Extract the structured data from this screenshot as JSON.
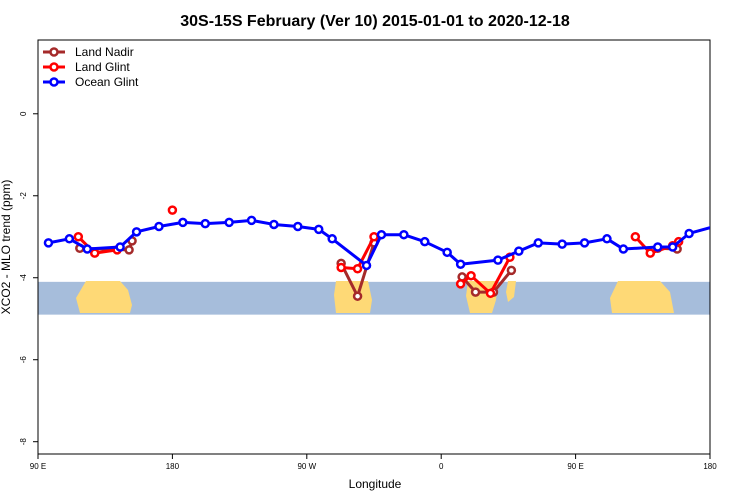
{
  "chart_data": {
    "type": "line",
    "title": "30S-15S February (Ver 10)   2015-01-01 to 2020-12-18",
    "xlabel": "Longitude",
    "ylabel": "XCO2 - MLO trend (ppm)",
    "xlim": [
      90,
      540
    ],
    "ylim": [
      -8.3,
      1.8
    ],
    "x_ticks": [
      {
        "value": 90,
        "label": "90 E"
      },
      {
        "value": 180,
        "label": "180"
      },
      {
        "value": 270,
        "label": "90 W"
      },
      {
        "value": 360,
        "label": "0"
      },
      {
        "value": 450,
        "label": "90 E"
      },
      {
        "value": 540,
        "label": "180"
      }
    ],
    "y_ticks": [
      0,
      -2,
      -4,
      -6,
      -8
    ],
    "legend_position": "top-left",
    "background_map": {
      "lat_band": [
        -4.1,
        -4.9
      ],
      "ocean_color": "#a6bddb",
      "land_color": "#fed976"
    },
    "series": [
      {
        "name": "Land Nadir",
        "color": "#a52a2a",
        "segments": [
          [
            [
              118,
              -3.28
            ],
            [
              151,
              -3.32
            ],
            [
              153,
              -3.1
            ]
          ],
          [
            [
              293,
              -3.65
            ],
            [
              304,
              -4.45
            ],
            [
              315,
              -3.15
            ]
          ],
          [
            [
              374,
              -3.98
            ],
            [
              383,
              -4.35
            ],
            [
              395,
              -4.35
            ],
            [
              407,
              -3.82
            ]
          ],
          [
            [
              505,
              -3.28
            ],
            [
              518,
              -3.3
            ]
          ]
        ]
      },
      {
        "name": "Land Glint",
        "color": "#ff0000",
        "segments": [
          [
            [
              117,
              -3.0
            ],
            [
              128,
              -3.4
            ],
            [
              143,
              -3.32
            ]
          ],
          [
            [
              180,
              -2.35
            ]
          ],
          [
            [
              293,
              -3.75
            ],
            [
              304,
              -3.78
            ],
            [
              315,
              -3.0
            ]
          ],
          [
            [
              373,
              -4.15
            ],
            [
              380,
              -3.95
            ],
            [
              393,
              -4.38
            ],
            [
              406,
              -3.5
            ]
          ],
          [
            [
              490,
              -3.0
            ],
            [
              500,
              -3.4
            ],
            [
              515,
              -3.22
            ],
            [
              519,
              -3.12
            ]
          ]
        ]
      },
      {
        "name": "Ocean Glint",
        "color": "#0000ff",
        "segments": [
          [
            [
              97,
              -3.15
            ],
            [
              111,
              -3.05
            ],
            [
              123,
              -3.3
            ],
            [
              145,
              -3.25
            ],
            [
              156,
              -2.88
            ],
            [
              171,
              -2.75
            ],
            [
              187,
              -2.65
            ],
            [
              202,
              -2.68
            ],
            [
              218,
              -2.65
            ],
            [
              233,
              -2.6
            ],
            [
              248,
              -2.7
            ],
            [
              264,
              -2.75
            ],
            [
              278,
              -2.82
            ],
            [
              287,
              -3.05
            ],
            [
              310,
              -3.7
            ],
            [
              320,
              -2.95
            ],
            [
              335,
              -2.95
            ],
            [
              349,
              -3.12
            ],
            [
              364,
              -3.38
            ],
            [
              373,
              -3.67
            ],
            [
              398,
              -3.57
            ],
            [
              412,
              -3.35
            ],
            [
              425,
              -3.15
            ],
            [
              441,
              -3.18
            ],
            [
              456,
              -3.15
            ],
            [
              471,
              -3.05
            ],
            [
              482,
              -3.3
            ],
            [
              505,
              -3.25
            ],
            [
              515,
              -3.25
            ],
            [
              526,
              -2.92
            ],
            [
              543,
              -2.75
            ]
          ]
        ]
      }
    ]
  }
}
